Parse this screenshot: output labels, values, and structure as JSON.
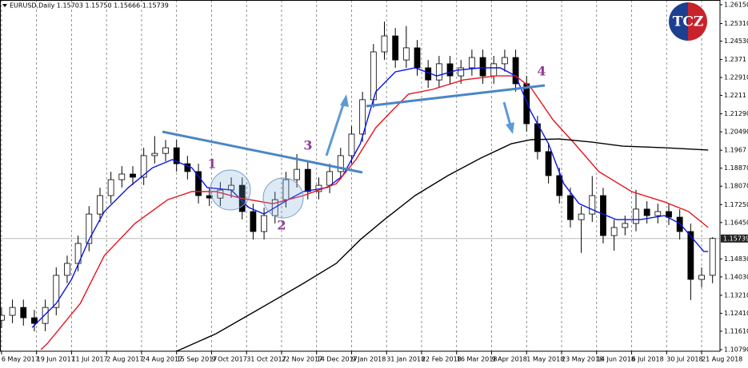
{
  "chart_data": {
    "type": "candlestick",
    "title": "EURUSD,Daily  1.15703 1.15750 1.15666 1.15739",
    "logo": "TCZ",
    "annotations": [
      "1",
      "2",
      "3",
      "4"
    ],
    "x": [
      0,
      5,
      10,
      15,
      20,
      25,
      30,
      35,
      40,
      45,
      50,
      55,
      60,
      65,
      70,
      75,
      80,
      85,
      90,
      95,
      100,
      105,
      110,
      115,
      120,
      125,
      130,
      135,
      140,
      145,
      150,
      155,
      160,
      165,
      170,
      175,
      180,
      185,
      190,
      195,
      200,
      205,
      210,
      215,
      220,
      225,
      230,
      235,
      240,
      245,
      250,
      255,
      260,
      265,
      270,
      275,
      280,
      285,
      290,
      295,
      300,
      305,
      310,
      315,
      320,
      325
    ],
    "open": [
      1.121,
      1.1232,
      1.1267,
      1.1221,
      1.1196,
      1.1267,
      1.141,
      1.1463,
      1.1552,
      1.1683,
      1.1765,
      1.1836,
      1.1861,
      1.1847,
      1.1943,
      1.1953,
      1.1978,
      1.1907,
      1.1872,
      1.1765,
      1.1754,
      1.179,
      1.1811,
      1.1694,
      1.1605,
      1.1676,
      1.1747,
      1.1836,
      1.1882,
      1.1783,
      1.1811,
      1.1872,
      1.1943,
      1.2039,
      1.2192,
      1.2405,
      1.2476,
      1.2369,
      1.2423,
      1.2334,
      1.228,
      1.2352,
      1.2298,
      1.2334,
      1.238,
      1.2298,
      1.2352,
      1.238,
      1.2263,
      1.2085,
      1.1961,
      1.1854,
      1.1765,
      1.1658,
      1.1683,
      1.1765,
      1.1587,
      1.1623,
      1.1641,
      1.1705,
      1.1676,
      1.1694,
      1.1669,
      1.1605,
      1.1392,
      1.141
    ],
    "high": [
      1.1267,
      1.1302,
      1.1302,
      1.1256,
      1.1302,
      1.1445,
      1.1498,
      1.1587,
      1.1718,
      1.18,
      1.1871,
      1.1896,
      1.1896,
      1.1978,
      1.203,
      1.2013,
      1.2013,
      1.1942,
      1.1907,
      1.18,
      1.1825,
      1.1846,
      1.1846,
      1.1729,
      1.1711,
      1.1782,
      1.1871,
      1.195,
      1.1917,
      1.1846,
      1.1907,
      1.1978,
      1.2074,
      1.2227,
      1.244,
      1.254,
      1.2511,
      1.252,
      1.2458,
      1.2369,
      1.2387,
      1.2387,
      1.2369,
      1.2415,
      1.2415,
      1.2387,
      1.2415,
      1.2415,
      1.2298,
      1.212,
      1.1996,
      1.1889,
      1.18,
      1.1718,
      1.1852,
      1.18,
      1.1658,
      1.1676,
      1.1791,
      1.174,
      1.1729,
      1.1729,
      1.1704,
      1.164,
      1.1445,
      1.158
    ],
    "low": [
      1.1175,
      1.1197,
      1.1186,
      1.1161,
      1.1161,
      1.1232,
      1.1375,
      1.1428,
      1.1517,
      1.1648,
      1.173,
      1.1801,
      1.1812,
      1.1812,
      1.1908,
      1.1918,
      1.1872,
      1.1837,
      1.173,
      1.1719,
      1.1719,
      1.1755,
      1.1659,
      1.157,
      1.157,
      1.1641,
      1.1712,
      1.1801,
      1.1748,
      1.1748,
      1.1776,
      1.1837,
      1.1908,
      1.2004,
      1.2157,
      1.237,
      1.2334,
      1.2334,
      1.2299,
      1.2245,
      1.2245,
      1.2263,
      1.2263,
      1.2299,
      1.2263,
      1.2263,
      1.2317,
      1.2228,
      1.205,
      1.1926,
      1.1819,
      1.173,
      1.1623,
      1.151,
      1.1648,
      1.1552,
      1.152,
      1.1588,
      1.1606,
      1.1641,
      1.1641,
      1.1634,
      1.157,
      1.13,
      1.1357,
      1.1375
    ],
    "close": [
      1.1232,
      1.1267,
      1.1221,
      1.1196,
      1.1267,
      1.141,
      1.1463,
      1.1552,
      1.1683,
      1.1765,
      1.1836,
      1.1861,
      1.1847,
      1.1943,
      1.1953,
      1.1978,
      1.1907,
      1.1872,
      1.1765,
      1.1754,
      1.179,
      1.1811,
      1.1694,
      1.1605,
      1.1676,
      1.1747,
      1.1836,
      1.1882,
      1.1783,
      1.1811,
      1.1872,
      1.1943,
      1.2039,
      1.2192,
      1.2405,
      1.2476,
      1.2369,
      1.2423,
      1.2334,
      1.228,
      1.2352,
      1.2298,
      1.2334,
      1.238,
      1.2298,
      1.2352,
      1.238,
      1.2263,
      1.2085,
      1.1961,
      1.1854,
      1.1765,
      1.1658,
      1.1683,
      1.1765,
      1.1587,
      1.1623,
      1.1641,
      1.1705,
      1.1676,
      1.1694,
      1.1669,
      1.1605,
      1.1392,
      1.141,
      1.1574
    ],
    "up_color": "#ffffff",
    "down_color": "#000000",
    "series": [
      {
        "color": "#0a14e6",
        "x": [
          14,
          25,
          32,
          40,
          47,
          58,
          69,
          78,
          87,
          94,
          105,
          113,
          120,
          131,
          138,
          149,
          156,
          164,
          171,
          180,
          189,
          199,
          208,
          219,
          228,
          235,
          242,
          250,
          257,
          264,
          272,
          281,
          292,
          303,
          310,
          321,
          323
        ],
        "values": [
          1.1178,
          1.1285,
          1.1392,
          1.1569,
          1.1694,
          1.1801,
          1.1889,
          1.1925,
          1.1889,
          1.1801,
          1.179,
          1.1712,
          1.1683,
          1.1747,
          1.1783,
          1.1801,
          1.1854,
          1.1996,
          1.2227,
          1.2316,
          1.2334,
          1.2298,
          1.2323,
          1.2334,
          1.2334,
          1.2298,
          1.2138,
          1.1996,
          1.1818,
          1.1729,
          1.1694,
          1.1658,
          1.1658,
          1.1676,
          1.1641,
          1.1516,
          1.1516
        ]
      },
      {
        "color": "#e8141e",
        "x": [
          18,
          21,
          36,
          47,
          61,
          76,
          87,
          98,
          109,
          124,
          138,
          153,
          162,
          171,
          178,
          186,
          197,
          211,
          226,
          235,
          242,
          252,
          262,
          273,
          288,
          303,
          314,
          323
        ],
        "values": [
          1.1079,
          1.1107,
          1.1285,
          1.1498,
          1.1641,
          1.1747,
          1.1783,
          1.1783,
          1.1754,
          1.1729,
          1.1765,
          1.1818,
          1.1925,
          1.2067,
          1.2138,
          1.2217,
          1.2238,
          1.228,
          1.2298,
          1.2298,
          1.2245,
          1.2103,
          1.1996,
          1.1872,
          1.1783,
          1.1737,
          1.1694,
          1.1623
        ]
      },
      {
        "color": "#000000",
        "x": [
          80,
          98,
          116,
          138,
          153,
          164,
          175,
          189,
          204,
          219,
          233,
          242,
          255,
          270,
          284,
          303,
          323
        ],
        "values": [
          1.1072,
          1.115,
          1.125,
          1.1374,
          1.1463,
          1.1569,
          1.1658,
          1.1765,
          1.1854,
          1.1932,
          1.1996,
          1.2014,
          1.2017,
          1.2003,
          1.1985,
          1.1978,
          1.1968
        ]
      }
    ],
    "last_price": 1.15739,
    "xlim": [
      -0.7,
      328.4
    ],
    "ylim": [
      1.1072,
      1.2636
    ],
    "xticks": [
      {
        "value": 0,
        "label": "6 May 2017"
      },
      {
        "value": 16,
        "label": "19 Jun 2017"
      },
      {
        "value": 32,
        "label": "11 Jul 2017"
      },
      {
        "value": 48,
        "label": "2 Aug 2017"
      },
      {
        "value": 64,
        "label": "24 Aug 2017"
      },
      {
        "value": 80,
        "label": "15 Sep 2017"
      },
      {
        "value": 96,
        "label": "9 Oct 2017"
      },
      {
        "value": 112,
        "label": "31 Oct 2017"
      },
      {
        "value": 128,
        "label": "22 Nov 2017"
      },
      {
        "value": 144,
        "label": "14 Dec 2017"
      },
      {
        "value": 160,
        "label": "9 Jan 2018"
      },
      {
        "value": 176,
        "label": "31 Jan 2018"
      },
      {
        "value": 192,
        "label": "22 Feb 2018"
      },
      {
        "value": 208,
        "label": "16 Mar 2018"
      },
      {
        "value": 224,
        "label": "9 Apr 2018"
      },
      {
        "value": 240,
        "label": "1 May 2018"
      },
      {
        "value": 256,
        "label": "23 May 2018"
      },
      {
        "value": 272,
        "label": "14 Jun 2018"
      },
      {
        "value": 288,
        "label": "6 Jul 2018"
      },
      {
        "value": 304,
        "label": "30 Jul 2018"
      },
      {
        "value": 320,
        "label": "21 Aug 2018"
      }
    ],
    "yticks": [
      {
        "value": 1.2615,
        "label": "1.26150"
      },
      {
        "value": 1.2531,
        "label": "1.25310"
      },
      {
        "value": 1.2453,
        "label": "1.24530"
      },
      1.2371,
      {
        "value": 1.2291,
        "label": "1.22910"
      },
      1.2211,
      {
        "value": 1.2129,
        "label": "1.21290"
      },
      {
        "value": 1.2049,
        "label": "1.20490"
      },
      1.1967,
      {
        "value": 1.1887,
        "label": "1.18870"
      },
      {
        "value": 1.1807,
        "label": "1.18070"
      },
      {
        "value": 1.1725,
        "label": "1.17250"
      },
      {
        "value": 1.1645,
        "label": "1.16450"
      },
      {
        "value": 1.1483,
        "label": "1.14830"
      },
      {
        "value": 1.1403,
        "label": "1.14030"
      },
      {
        "value": 1.1321,
        "label": "1.13210"
      },
      {
        "value": 1.1241,
        "label": "1.12410"
      },
      {
        "value": 1.1161,
        "label": "1.11610"
      },
      {
        "value": 1.1079,
        "label": "1.10790"
      }
    ],
    "grid": true
  }
}
